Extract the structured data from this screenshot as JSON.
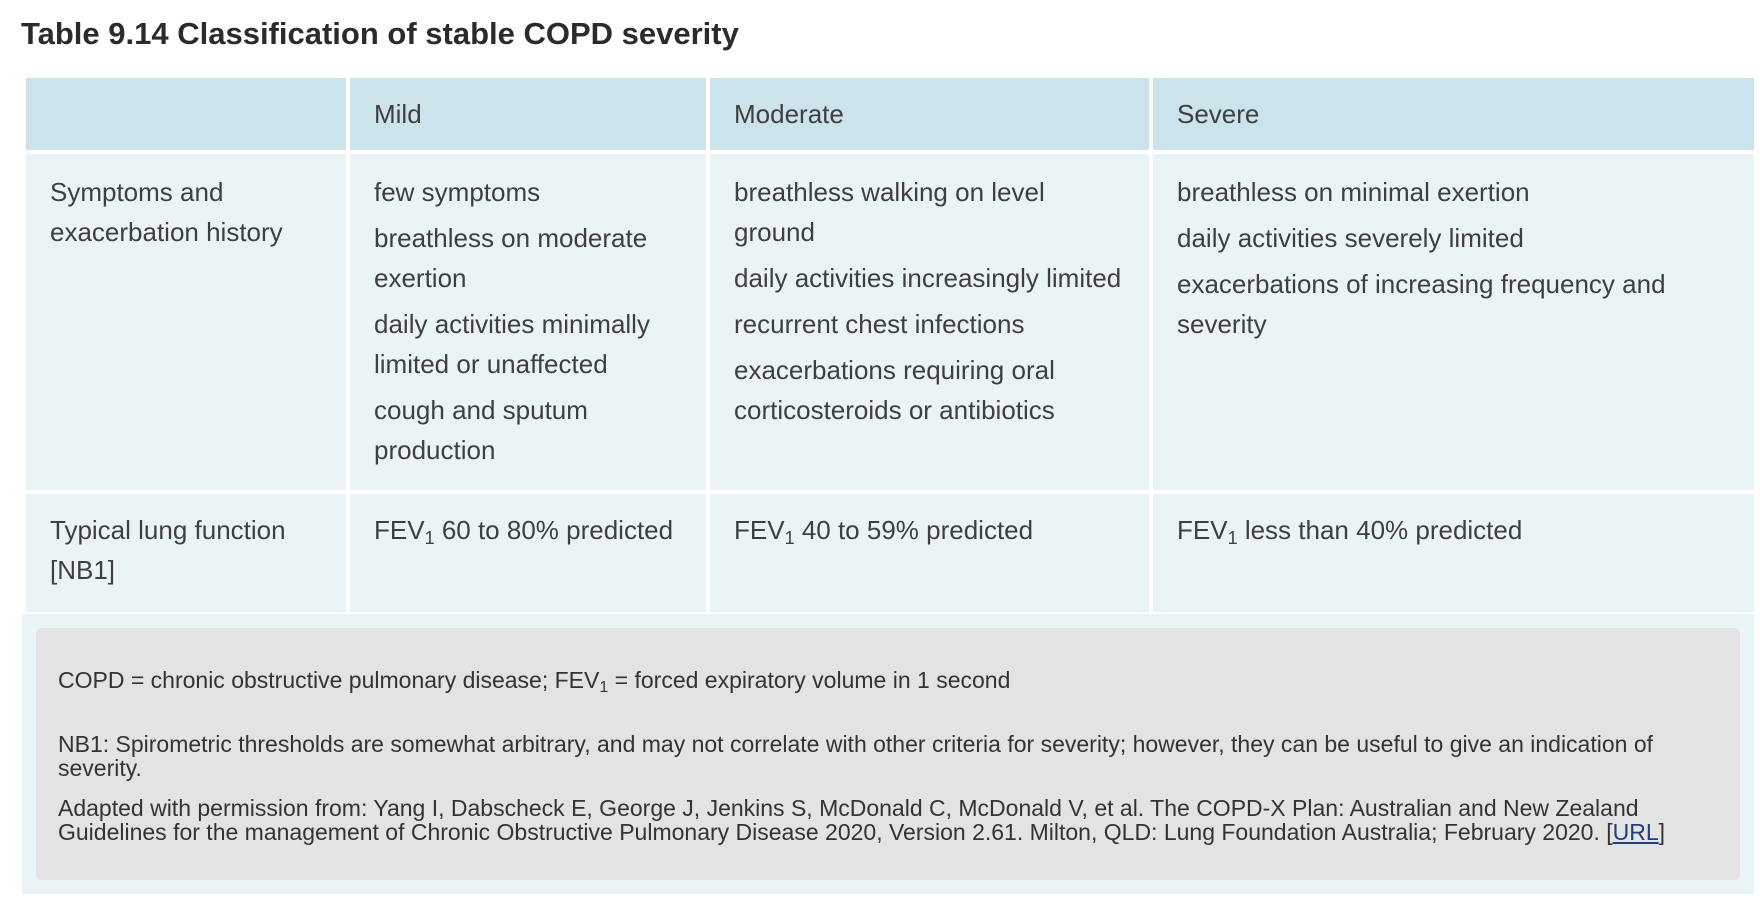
{
  "title": "Table 9.14 Classification of stable COPD severity",
  "table": {
    "headers": [
      "",
      "Mild",
      "Moderate",
      "Severe"
    ],
    "rows": [
      {
        "label": "Symptoms and exacerbation history",
        "mild": [
          "few symptoms",
          "breathless on moderate exertion",
          "daily activities minimally limited or unaffected",
          "cough and sputum production"
        ],
        "moderate": [
          "breathless walking on level ground",
          "daily activities increasingly limited",
          "recurrent chest infections",
          "exacerbations requiring oral corticosteroids or antibiotics"
        ],
        "severe": [
          "breathless on minimal exertion",
          "daily activities severely limited",
          "exacerbations of increasing frequency and severity"
        ]
      },
      {
        "label": "Typical lung function [NB1]",
        "fev_prefix": "FEV",
        "fev_sub": "1",
        "mild": " 60 to 80% predicted",
        "moderate": " 40 to 59% predicted",
        "severe": " less than 40% predicted"
      }
    ]
  },
  "notes": {
    "abbrev_part1": "COPD = chronic obstructive pulmonary disease; FEV",
    "abbrev_sub": "1",
    "abbrev_part2": " = forced expiratory volume in 1 second",
    "nb1": "NB1: Spirometric thresholds are somewhat arbitrary, and may not correlate with other criteria for severity; however, they can be useful to give an indication of severity.",
    "source": "Adapted with permission from: Yang I, Dabscheck E, George J, Jenkins S, McDonald C, McDonald V, et al. The COPD-X Plan: Australian and New Zealand Guidelines for the management of Chronic Obstructive Pulmonary Disease 2020, Version 2.61. Milton, QLD: Lung Foundation Australia; February 2020. [",
    "url_label": "URL",
    "source_end": "]"
  }
}
